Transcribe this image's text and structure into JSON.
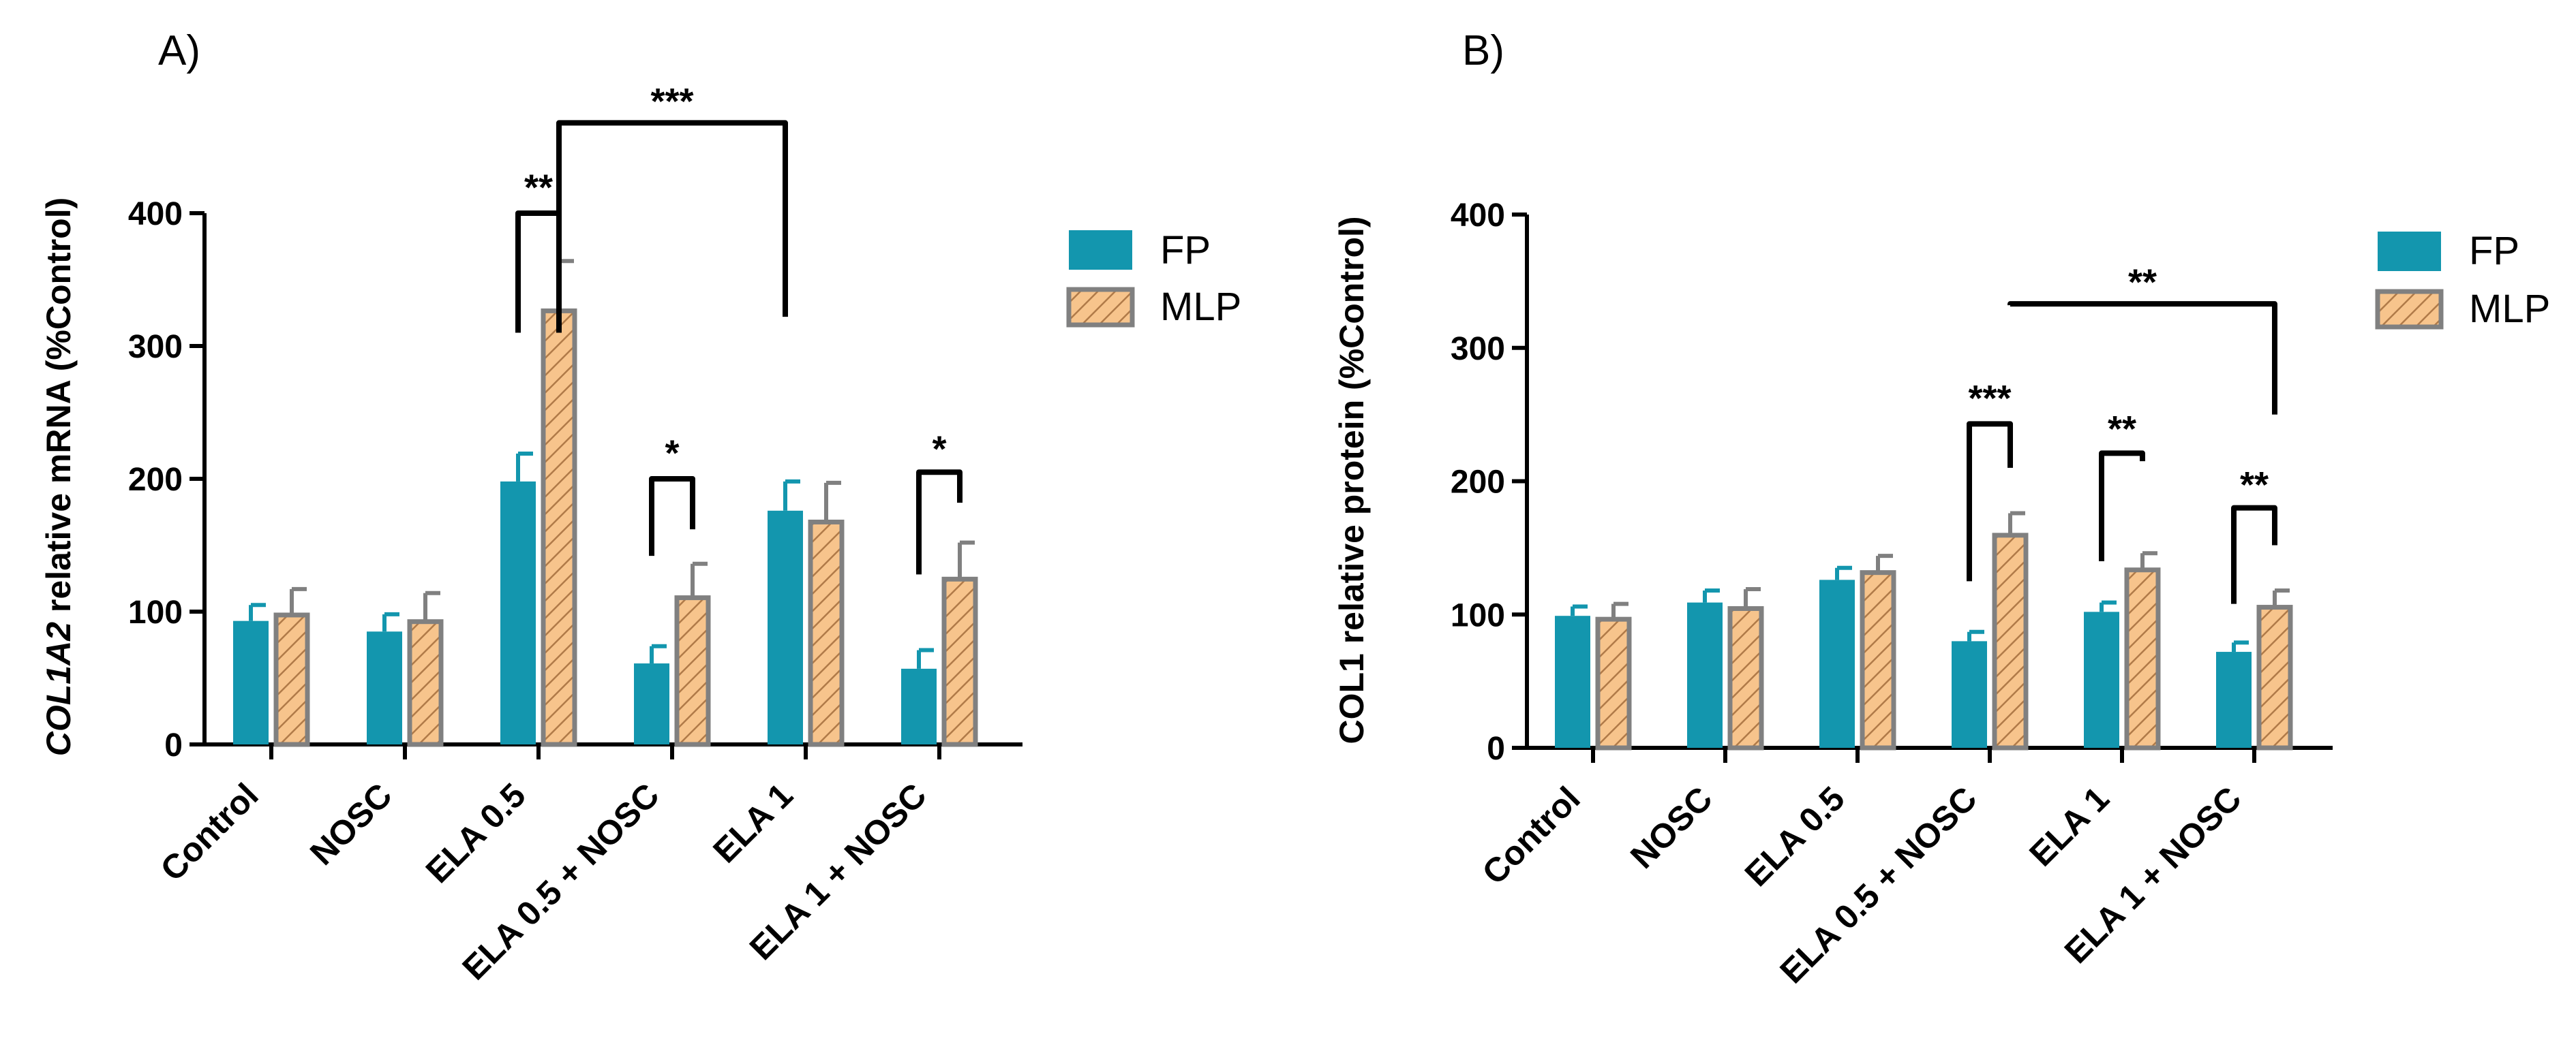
{
  "chart_data": [
    {
      "type": "bar",
      "panel_label": "A)",
      "ylabel_italic": "COL1A2",
      "ylabel_rest": " relative mRNA (%Control)",
      "ylim": [
        0,
        400
      ],
      "yticks": [
        0,
        100,
        200,
        300,
        400
      ],
      "categories": [
        "Control",
        "NOSC",
        "ELA 0.5",
        "ELA 0.5 + NOSC",
        "ELA 1",
        "ELA 1 + NOSC"
      ],
      "series": [
        {
          "name": "FP",
          "values": [
            93,
            85,
            198,
            61,
            176,
            57
          ],
          "errors": [
            12,
            13,
            21,
            13,
            22,
            14
          ]
        },
        {
          "name": "MLP",
          "values": [
            99,
            94,
            328,
            112,
            169,
            126
          ],
          "errors": [
            18,
            20,
            36,
            24,
            28,
            26
          ]
        }
      ],
      "significance": [
        {
          "label": "**",
          "from": [
            2,
            0
          ],
          "to": [
            2,
            1
          ],
          "left_y": 310,
          "right_y": 310,
          "top_y": 400,
          "label_y": 410
        },
        {
          "label": "***",
          "from": [
            2,
            1
          ],
          "to": [
            4,
            0
          ],
          "left_y": 380,
          "right_y": 322,
          "top_y": 468,
          "label_y": 475
        },
        {
          "label": "*",
          "from": [
            3,
            0
          ],
          "to": [
            3,
            1
          ],
          "left_y": 142,
          "right_y": 162,
          "top_y": 200,
          "label_y": 210
        },
        {
          "label": "*",
          "from": [
            5,
            0
          ],
          "to": [
            5,
            1
          ],
          "left_y": 128,
          "right_y": 182,
          "top_y": 205,
          "label_y": 213
        }
      ]
    },
    {
      "type": "bar",
      "panel_label": "B)",
      "ylabel_italic": "",
      "ylabel_rest": "COL1 relative protein (%Control)",
      "ylim": [
        0,
        400
      ],
      "yticks": [
        0,
        100,
        200,
        300,
        400
      ],
      "categories": [
        "Control",
        "NOSC",
        "ELA 0.5",
        "ELA 0.5 + NOSC",
        "ELA 1",
        "ELA 1 + NOSC"
      ],
      "series": [
        {
          "name": "FP",
          "values": [
            99,
            109,
            126,
            80,
            102,
            72
          ],
          "errors": [
            7,
            9,
            9,
            7,
            7,
            7
          ]
        },
        {
          "name": "MLP",
          "values": [
            98,
            106,
            133,
            161,
            135,
            107
          ],
          "errors": [
            10,
            13,
            11,
            15,
            11,
            11
          ]
        }
      ],
      "significance": [
        {
          "label": "***",
          "from": [
            3,
            0
          ],
          "to": [
            3,
            1
          ],
          "left_y": 125,
          "right_y": 210,
          "top_y": 243,
          "label_y": 253
        },
        {
          "label": "**",
          "from": [
            3,
            1
          ],
          "to": [
            5,
            1
          ],
          "left_y": 332,
          "right_y": 250,
          "top_y": 333,
          "label_y": 340
        },
        {
          "label": "**",
          "from": [
            4,
            0
          ],
          "to": [
            4,
            1
          ],
          "left_y": 140,
          "right_y": 215,
          "top_y": 221,
          "label_y": 230
        },
        {
          "label": "**",
          "from": [
            5,
            0
          ],
          "to": [
            5,
            1
          ],
          "left_y": 108,
          "right_y": 152,
          "top_y": 180,
          "label_y": 188
        }
      ]
    }
  ],
  "legend": {
    "fp_label": "FP",
    "mlp_label": "MLP"
  },
  "colors": {
    "fp_fill": "#1396AE",
    "mlp_fill": "#F7C48C",
    "mlp_hatch": "#B07A48",
    "mlp_stroke": "#808080",
    "fp_error": "#1396AE",
    "mlp_error": "#808080",
    "axis": "#000000"
  }
}
